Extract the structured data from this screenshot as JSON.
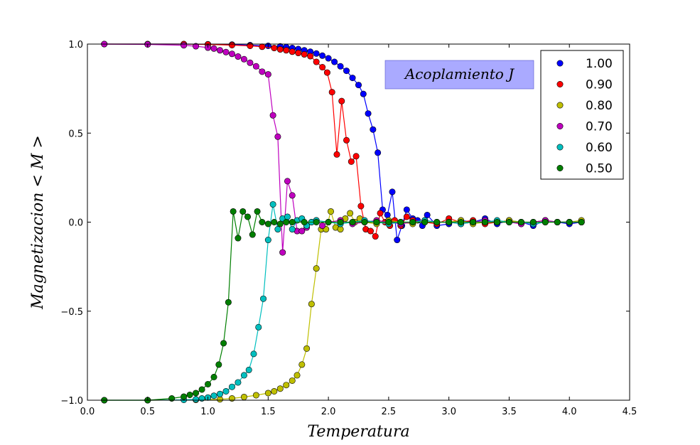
{
  "chart_data": {
    "type": "line",
    "xlabel": "Temperatura",
    "ylabel": "Magnetizacion  < M >",
    "xlim": [
      0.0,
      4.5
    ],
    "ylim": [
      -1.0,
      1.0
    ],
    "xticks": [
      0.0,
      0.5,
      1.0,
      1.5,
      2.0,
      2.5,
      3.0,
      3.5,
      4.0,
      4.5
    ],
    "xtick_labels": [
      "0.0",
      "0.5",
      "1.0",
      "1.5",
      "2.0",
      "2.5",
      "3.0",
      "3.5",
      "4.0",
      "4.5"
    ],
    "yticks": [
      -1.0,
      -0.5,
      0.0,
      0.5,
      1.0
    ],
    "ytick_labels": [
      "−1.0",
      "−0.5",
      "0.0",
      "0.5",
      "1.0"
    ],
    "grid": false,
    "legend_position": "top-right",
    "annotation": "Acoplamiento J",
    "annotation_color": "#aaaaff",
    "series": [
      {
        "name": "1.00",
        "color": "#0000ff",
        "x": [
          0.14,
          0.5,
          0.8,
          1.0,
          1.2,
          1.35,
          1.5,
          1.6,
          1.65,
          1.7,
          1.75,
          1.8,
          1.85,
          1.9,
          1.95,
          2.0,
          2.05,
          2.1,
          2.15,
          2.2,
          2.25,
          2.29,
          2.33,
          2.37,
          2.41,
          2.45,
          2.49,
          2.53,
          2.57,
          2.61,
          2.65,
          2.7,
          2.74,
          2.78,
          2.82,
          2.9,
          3.0,
          3.1,
          3.2,
          3.3,
          3.4,
          3.5,
          3.6,
          3.7,
          3.8,
          3.9,
          4.0,
          4.1
        ],
        "y": [
          1.0,
          1.0,
          1.0,
          0.999,
          0.997,
          0.994,
          0.99,
          0.987,
          0.983,
          0.978,
          0.972,
          0.965,
          0.957,
          0.947,
          0.935,
          0.92,
          0.9,
          0.875,
          0.85,
          0.81,
          0.77,
          0.72,
          0.61,
          0.52,
          0.39,
          0.07,
          0.04,
          0.17,
          -0.1,
          -0.02,
          0.07,
          0.02,
          0.01,
          -0.02,
          0.04,
          -0.02,
          -0.01,
          0.01,
          0.0,
          0.02,
          -0.01,
          0.01,
          0.0,
          -0.02,
          0.01,
          0.0,
          -0.01,
          0.0
        ]
      },
      {
        "name": "0.90",
        "color": "#ff0000",
        "x": [
          0.14,
          0.5,
          0.8,
          1.0,
          1.2,
          1.35,
          1.45,
          1.55,
          1.6,
          1.65,
          1.7,
          1.75,
          1.8,
          1.85,
          1.9,
          1.95,
          1.99,
          2.03,
          2.07,
          2.11,
          2.15,
          2.19,
          2.23,
          2.27,
          2.31,
          2.35,
          2.39,
          2.43,
          2.47,
          2.51,
          2.55,
          2.6,
          2.65,
          2.7,
          2.8,
          2.9,
          3.0,
          3.1,
          3.2,
          3.3,
          3.4,
          3.5,
          3.6,
          3.7,
          3.8,
          3.9,
          4.0,
          4.1
        ],
        "y": [
          1.0,
          1.0,
          1.0,
          0.998,
          0.994,
          0.99,
          0.985,
          0.978,
          0.97,
          0.965,
          0.957,
          0.95,
          0.942,
          0.932,
          0.9,
          0.87,
          0.84,
          0.73,
          0.38,
          0.68,
          0.46,
          0.34,
          0.37,
          0.09,
          -0.04,
          -0.05,
          -0.08,
          0.05,
          0.0,
          -0.02,
          0.01,
          -0.02,
          0.03,
          0.01,
          0.0,
          -0.01,
          0.02,
          0.0,
          0.01,
          -0.01,
          0.0,
          0.01,
          -0.01,
          0.0,
          0.01,
          0.0,
          0.0,
          0.0
        ]
      },
      {
        "name": "0.80",
        "color": "#bfbf00",
        "x": [
          0.14,
          0.5,
          0.9,
          1.1,
          1.2,
          1.3,
          1.4,
          1.5,
          1.55,
          1.6,
          1.65,
          1.7,
          1.74,
          1.78,
          1.82,
          1.86,
          1.9,
          1.94,
          1.98,
          2.02,
          2.06,
          2.1,
          2.14,
          2.18,
          2.22,
          2.26,
          2.3,
          2.4,
          2.5,
          2.6,
          2.7,
          2.8,
          2.9,
          3.0,
          3.1,
          3.2,
          3.3,
          3.4,
          3.5,
          3.6,
          3.7,
          3.8,
          3.9,
          4.0,
          4.1
        ],
        "y": [
          -1.0,
          -1.0,
          -0.998,
          -0.995,
          -0.99,
          -0.982,
          -0.972,
          -0.96,
          -0.95,
          -0.935,
          -0.915,
          -0.89,
          -0.86,
          -0.8,
          -0.71,
          -0.46,
          -0.26,
          -0.04,
          -0.04,
          0.06,
          -0.03,
          -0.04,
          0.02,
          0.05,
          0.0,
          0.02,
          0.0,
          -0.01,
          0.01,
          0.0,
          -0.01,
          0.01,
          0.0,
          0.0,
          0.01,
          -0.01,
          0.0,
          0.0,
          0.01,
          0.0,
          -0.01,
          0.0,
          0.0,
          0.0,
          0.01
        ]
      },
      {
        "name": "0.70",
        "color": "#bf00bf",
        "x": [
          0.14,
          0.5,
          0.8,
          0.9,
          1.0,
          1.05,
          1.1,
          1.15,
          1.2,
          1.25,
          1.3,
          1.35,
          1.4,
          1.45,
          1.5,
          1.54,
          1.58,
          1.62,
          1.66,
          1.7,
          1.74,
          1.78,
          1.82,
          1.86,
          1.9,
          1.95,
          2.0,
          2.1,
          2.2,
          2.3,
          2.4,
          2.5,
          2.6,
          2.7,
          2.8,
          2.9,
          3.0,
          3.1,
          3.2,
          3.3,
          3.4,
          3.5,
          3.6,
          3.7,
          3.8,
          3.9,
          4.0,
          4.1
        ],
        "y": [
          1.0,
          0.998,
          0.993,
          0.988,
          0.98,
          0.975,
          0.965,
          0.955,
          0.945,
          0.93,
          0.915,
          0.895,
          0.875,
          0.845,
          0.83,
          0.6,
          0.48,
          -0.17,
          0.23,
          0.15,
          -0.05,
          -0.05,
          -0.03,
          0.0,
          0.01,
          -0.02,
          0.0,
          0.01,
          -0.01,
          0.0,
          0.01,
          0.0,
          -0.01,
          0.0,
          0.01,
          0.0,
          0.0,
          -0.01,
          0.0,
          0.01,
          0.0,
          0.0,
          -0.01,
          0.0,
          0.01,
          0.0,
          0.0,
          0.0
        ]
      },
      {
        "name": "0.60",
        "color": "#00bfbf",
        "x": [
          0.14,
          0.5,
          0.8,
          0.9,
          0.95,
          1.0,
          1.05,
          1.1,
          1.15,
          1.2,
          1.25,
          1.3,
          1.34,
          1.38,
          1.42,
          1.46,
          1.5,
          1.54,
          1.58,
          1.62,
          1.66,
          1.7,
          1.74,
          1.78,
          1.82,
          1.86,
          1.9,
          2.0,
          2.1,
          2.2,
          2.3,
          2.4,
          2.5,
          2.6,
          2.7,
          2.8,
          2.9,
          3.0,
          3.1,
          3.2,
          3.3,
          3.4,
          3.5,
          3.6,
          3.7,
          3.8,
          3.9,
          4.0,
          4.1
        ],
        "y": [
          -1.0,
          -1.0,
          -0.998,
          -0.995,
          -0.99,
          -0.985,
          -0.975,
          -0.965,
          -0.95,
          -0.925,
          -0.9,
          -0.86,
          -0.83,
          -0.74,
          -0.59,
          -0.43,
          -0.1,
          0.1,
          -0.04,
          0.02,
          0.03,
          -0.04,
          0.01,
          0.02,
          -0.02,
          0.0,
          0.01,
          0.0,
          -0.01,
          0.0,
          0.01,
          0.0,
          -0.01,
          0.0,
          0.0,
          0.01,
          0.0,
          0.0,
          -0.01,
          0.0,
          0.0,
          0.01,
          0.0,
          0.0,
          -0.01,
          0.0,
          0.0,
          0.0,
          0.0
        ]
      },
      {
        "name": "0.50",
        "color": "#007f00",
        "x": [
          0.14,
          0.5,
          0.7,
          0.8,
          0.85,
          0.9,
          0.95,
          1.0,
          1.05,
          1.09,
          1.13,
          1.17,
          1.21,
          1.25,
          1.29,
          1.33,
          1.37,
          1.41,
          1.45,
          1.5,
          1.55,
          1.6,
          1.65,
          1.7,
          1.8,
          1.9,
          2.0,
          2.1,
          2.2,
          2.3,
          2.4,
          2.5,
          2.6,
          2.7,
          2.8,
          2.9,
          3.0,
          3.1,
          3.2,
          3.3,
          3.4,
          3.5,
          3.6,
          3.7,
          3.8,
          3.9,
          4.0,
          4.1
        ],
        "y": [
          -1.0,
          -1.0,
          -0.99,
          -0.98,
          -0.97,
          -0.96,
          -0.94,
          -0.91,
          -0.87,
          -0.8,
          -0.68,
          -0.45,
          0.06,
          -0.09,
          0.06,
          0.03,
          -0.07,
          0.06,
          0.0,
          -0.01,
          0.0,
          -0.01,
          0.0,
          0.0,
          0.0,
          0.0,
          0.0,
          0.0,
          0.0,
          0.0,
          0.0,
          0.0,
          0.0,
          0.0,
          0.0,
          0.0,
          0.0,
          0.0,
          0.0,
          0.0,
          0.0,
          0.0,
          0.0,
          0.0,
          0.0,
          0.0,
          0.0,
          0.0
        ]
      }
    ]
  }
}
